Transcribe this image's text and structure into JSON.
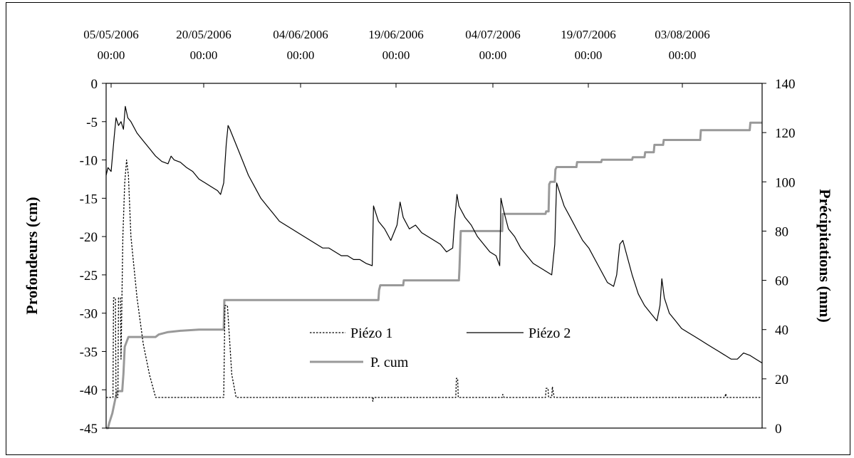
{
  "chart_data": {
    "type": "line",
    "title": "",
    "top_axis": {
      "tick_labels": [
        [
          "05/05/2006",
          "00:00"
        ],
        [
          "20/05/2006",
          "00:00"
        ],
        [
          "04/06/2006",
          "00:00"
        ],
        [
          "19/06/2006",
          "00:00"
        ],
        [
          "04/07/2006",
          "00:00"
        ],
        [
          "19/07/2006",
          "00:00"
        ],
        [
          "03/08/2006",
          "00:00"
        ]
      ]
    },
    "y_left": {
      "label": "Profondeurs (cm)",
      "range": [
        -45,
        0
      ],
      "ticks": [
        0,
        -5,
        -10,
        -15,
        -20,
        -25,
        -30,
        -35,
        -40,
        -45
      ],
      "tick_labels": [
        "0",
        "-5",
        "-10",
        "-15",
        "-20",
        "-25",
        "-30",
        "-35",
        "-40",
        "-45"
      ]
    },
    "y_right": {
      "label": "Précipitations (mm)",
      "range": [
        0,
        140
      ],
      "ticks": [
        140,
        120,
        100,
        80,
        60,
        40,
        20,
        0
      ],
      "tick_labels": [
        "140",
        "120",
        "100",
        "80",
        "60",
        "40",
        "20",
        "0"
      ]
    },
    "legend": {
      "position": "center-bottom",
      "entries": [
        "Piézo 1",
        "Piézo 2",
        "P. cum"
      ]
    },
    "series": [
      {
        "name": "Piézo 1",
        "axis": "left",
        "style": "dotted",
        "color": "#000000",
        "points": [
          [
            0,
            -41
          ],
          [
            1.1,
            -41
          ],
          [
            1.2,
            -28
          ],
          [
            1.5,
            -28
          ],
          [
            1.6,
            -41
          ],
          [
            1.9,
            -41
          ],
          [
            2.0,
            -28
          ],
          [
            2.3,
            -28
          ],
          [
            2.4,
            -36
          ],
          [
            2.7,
            -20
          ],
          [
            3.0,
            -13
          ],
          [
            3.3,
            -10
          ],
          [
            3.6,
            -12
          ],
          [
            4.0,
            -20
          ],
          [
            5.0,
            -28
          ],
          [
            6.0,
            -34
          ],
          [
            7.0,
            -38
          ],
          [
            8.0,
            -41
          ],
          [
            19.0,
            -41
          ],
          [
            19.2,
            -29
          ],
          [
            19.6,
            -29
          ],
          [
            20.3,
            -38
          ],
          [
            21.0,
            -41
          ],
          [
            43.0,
            -41
          ],
          [
            43.1,
            -41.5
          ],
          [
            43.2,
            -41
          ],
          [
            56.5,
            -41
          ],
          [
            56.6,
            -38.5
          ],
          [
            56.8,
            -38.5
          ],
          [
            56.9,
            -41
          ],
          [
            64.0,
            -41
          ],
          [
            64.1,
            -40.6
          ],
          [
            64.3,
            -41
          ],
          [
            71.0,
            -41
          ],
          [
            71.1,
            -39.8
          ],
          [
            71.4,
            -39.8
          ],
          [
            71.5,
            -41
          ],
          [
            72.0,
            -41
          ],
          [
            72.1,
            -39.6
          ],
          [
            72.4,
            -41
          ],
          [
            100.0,
            -41
          ],
          [
            100.1,
            -40.5
          ],
          [
            100.3,
            -41
          ],
          [
            106.0,
            -41
          ]
        ]
      },
      {
        "name": "Piézo 2",
        "axis": "left",
        "style": "solid",
        "color": "#000000",
        "points": [
          [
            0,
            -12
          ],
          [
            0.3,
            -11
          ],
          [
            0.8,
            -11.5
          ],
          [
            1.3,
            -7
          ],
          [
            1.6,
            -4.5
          ],
          [
            2.0,
            -5.5
          ],
          [
            2.4,
            -5
          ],
          [
            2.8,
            -6
          ],
          [
            3.1,
            -3
          ],
          [
            3.5,
            -4.5
          ],
          [
            4.0,
            -5
          ],
          [
            5.0,
            -6.5
          ],
          [
            6.0,
            -7.5
          ],
          [
            7.0,
            -8.5
          ],
          [
            8.0,
            -9.5
          ],
          [
            9.0,
            -10.2
          ],
          [
            10.0,
            -10.5
          ],
          [
            10.5,
            -9.5
          ],
          [
            11.0,
            -10
          ],
          [
            12.0,
            -10.3
          ],
          [
            13.0,
            -11
          ],
          [
            14.0,
            -11.5
          ],
          [
            15.0,
            -12.5
          ],
          [
            16.0,
            -13
          ],
          [
            17.0,
            -13.5
          ],
          [
            18.0,
            -14
          ],
          [
            18.5,
            -14.5
          ],
          [
            19.0,
            -13
          ],
          [
            19.4,
            -8
          ],
          [
            19.7,
            -5.5
          ],
          [
            20.0,
            -6
          ],
          [
            21.0,
            -8
          ],
          [
            22.0,
            -10
          ],
          [
            23.0,
            -12
          ],
          [
            24.0,
            -13.5
          ],
          [
            25.0,
            -15
          ],
          [
            26.0,
            -16
          ],
          [
            27.0,
            -17
          ],
          [
            28.0,
            -18
          ],
          [
            29.0,
            -18.5
          ],
          [
            30.0,
            -19
          ],
          [
            31.0,
            -19.5
          ],
          [
            32.0,
            -20
          ],
          [
            33.0,
            -20.5
          ],
          [
            34.0,
            -21
          ],
          [
            35.0,
            -21.5
          ],
          [
            36.0,
            -21.5
          ],
          [
            37.0,
            -22
          ],
          [
            38.0,
            -22.5
          ],
          [
            39.0,
            -22.5
          ],
          [
            40.0,
            -23
          ],
          [
            41.0,
            -23
          ],
          [
            42.0,
            -23.5
          ],
          [
            43.0,
            -23.8
          ],
          [
            43.2,
            -16
          ],
          [
            44.0,
            -18
          ],
          [
            45.0,
            -19
          ],
          [
            46.0,
            -20.5
          ],
          [
            47.0,
            -18.5
          ],
          [
            47.5,
            -15.5
          ],
          [
            48.0,
            -17.5
          ],
          [
            49.0,
            -19
          ],
          [
            50.0,
            -18.5
          ],
          [
            51.0,
            -19.5
          ],
          [
            52.0,
            -20
          ],
          [
            53.0,
            -20.5
          ],
          [
            54.0,
            -21
          ],
          [
            55.0,
            -22
          ],
          [
            56.0,
            -21.5
          ],
          [
            56.3,
            -18
          ],
          [
            56.7,
            -14.5
          ],
          [
            57.0,
            -16
          ],
          [
            58.0,
            -17.5
          ],
          [
            59.0,
            -18.5
          ],
          [
            60.0,
            -20
          ],
          [
            61.0,
            -21
          ],
          [
            62.0,
            -22
          ],
          [
            63.0,
            -22.5
          ],
          [
            63.6,
            -23.8
          ],
          [
            63.8,
            -15
          ],
          [
            64.2,
            -16.5
          ],
          [
            65.0,
            -19
          ],
          [
            66.0,
            -20
          ],
          [
            67.0,
            -21.5
          ],
          [
            68.0,
            -22.5
          ],
          [
            69.0,
            -23.5
          ],
          [
            70.0,
            -24
          ],
          [
            71.0,
            -24.5
          ],
          [
            72.0,
            -25
          ],
          [
            72.5,
            -21
          ],
          [
            72.8,
            -13
          ],
          [
            73.2,
            -14
          ],
          [
            74.0,
            -16
          ],
          [
            75.0,
            -17.5
          ],
          [
            76.0,
            -19
          ],
          [
            77.0,
            -20.5
          ],
          [
            78.0,
            -21.5
          ],
          [
            79.0,
            -23
          ],
          [
            80.0,
            -24.5
          ],
          [
            81.0,
            -26
          ],
          [
            82.0,
            -26.5
          ],
          [
            82.5,
            -25
          ],
          [
            83.0,
            -21
          ],
          [
            83.5,
            -20.5
          ],
          [
            84.0,
            -22
          ],
          [
            85.0,
            -25
          ],
          [
            86.0,
            -27.5
          ],
          [
            87.0,
            -29
          ],
          [
            88.0,
            -30
          ],
          [
            89.0,
            -31
          ],
          [
            89.5,
            -29
          ],
          [
            89.8,
            -25.5
          ],
          [
            90.2,
            -28
          ],
          [
            91.0,
            -30
          ],
          [
            92.0,
            -31
          ],
          [
            93.0,
            -32
          ],
          [
            94.0,
            -32.5
          ],
          [
            95.0,
            -33
          ],
          [
            96.0,
            -33.5
          ],
          [
            97.0,
            -34
          ],
          [
            98.0,
            -34.5
          ],
          [
            99.0,
            -35
          ],
          [
            100.0,
            -35.5
          ],
          [
            101.0,
            -36
          ],
          [
            102.0,
            -36
          ],
          [
            103.0,
            -35.2
          ],
          [
            104.0,
            -35.5
          ],
          [
            105.0,
            -36
          ],
          [
            106.0,
            -36.5
          ]
        ]
      },
      {
        "name": "P. cum",
        "axis": "right",
        "style": "solid",
        "color": "#999999",
        "points": [
          [
            0,
            0
          ],
          [
            0.3,
            0
          ],
          [
            0.5,
            2
          ],
          [
            1.0,
            6
          ],
          [
            1.5,
            12
          ],
          [
            1.8,
            15
          ],
          [
            2.6,
            15
          ],
          [
            2.8,
            22
          ],
          [
            3.0,
            33
          ],
          [
            3.3,
            35
          ],
          [
            3.6,
            37
          ],
          [
            8.0,
            37
          ],
          [
            8.5,
            38
          ],
          [
            10.0,
            39
          ],
          [
            12.0,
            39.5
          ],
          [
            15.0,
            40
          ],
          [
            19.0,
            40
          ],
          [
            19.1,
            52
          ],
          [
            44.0,
            52
          ],
          [
            44.1,
            56
          ],
          [
            44.3,
            58
          ],
          [
            48.0,
            58
          ],
          [
            48.1,
            60
          ],
          [
            57.0,
            60
          ],
          [
            57.1,
            65
          ],
          [
            57.3,
            80
          ],
          [
            64.0,
            80
          ],
          [
            64.1,
            87
          ],
          [
            71.0,
            87
          ],
          [
            71.1,
            88
          ],
          [
            71.5,
            88
          ],
          [
            71.6,
            99
          ],
          [
            71.8,
            100
          ],
          [
            72.5,
            100
          ],
          [
            72.6,
            105
          ],
          [
            72.8,
            106
          ],
          [
            76.0,
            106
          ],
          [
            76.1,
            108
          ],
          [
            80.0,
            108
          ],
          [
            80.1,
            109
          ],
          [
            85.0,
            109
          ],
          [
            85.1,
            110
          ],
          [
            87.0,
            110
          ],
          [
            87.1,
            112
          ],
          [
            88.5,
            112
          ],
          [
            88.6,
            115
          ],
          [
            90.0,
            115
          ],
          [
            90.1,
            117
          ],
          [
            96.0,
            117
          ],
          [
            96.1,
            121
          ],
          [
            104.0,
            121
          ],
          [
            104.1,
            124
          ],
          [
            106.0,
            124
          ]
        ]
      }
    ]
  }
}
